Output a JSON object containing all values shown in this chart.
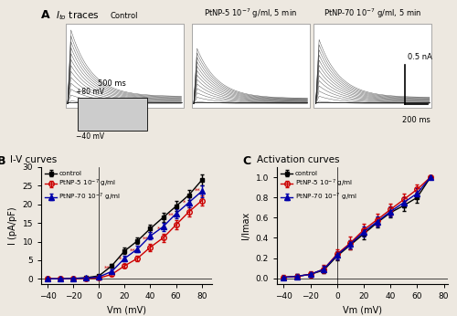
{
  "panel_A_title": "Ito traces",
  "panel_B_title": "I-V curves",
  "panel_C_title": "Activation curves",
  "Vm": [
    -40,
    -30,
    -20,
    -10,
    0,
    10,
    20,
    30,
    40,
    50,
    60,
    70,
    80
  ],
  "IV_control_mean": [
    0.0,
    0.0,
    0.1,
    0.3,
    0.8,
    3.5,
    7.5,
    10.2,
    13.5,
    16.5,
    19.5,
    22.5,
    26.5
  ],
  "IV_control_err": [
    0.1,
    0.1,
    0.1,
    0.2,
    0.3,
    0.5,
    0.8,
    0.9,
    1.0,
    1.2,
    1.3,
    1.4,
    1.5
  ],
  "IV_ptnp5_mean": [
    0.0,
    0.0,
    0.0,
    0.1,
    0.2,
    1.2,
    3.5,
    5.5,
    8.5,
    11.0,
    14.5,
    18.0,
    21.0
  ],
  "IV_ptnp5_err": [
    0.1,
    0.1,
    0.1,
    0.2,
    0.2,
    0.4,
    0.6,
    0.8,
    1.0,
    1.1,
    1.2,
    1.3,
    1.4
  ],
  "IV_ptnp70_mean": [
    0.0,
    0.0,
    0.1,
    0.2,
    0.5,
    2.0,
    5.5,
    8.0,
    11.5,
    14.0,
    17.5,
    20.5,
    23.5
  ],
  "IV_ptnp70_err": [
    0.1,
    0.1,
    0.1,
    0.2,
    0.3,
    0.5,
    0.7,
    0.9,
    1.0,
    1.1,
    1.2,
    1.4,
    1.5
  ],
  "Vm_act": [
    -40,
    -30,
    -20,
    -10,
    0,
    10,
    20,
    30,
    40,
    50,
    60,
    70
  ],
  "Act_control_mean": [
    0.01,
    0.02,
    0.04,
    0.08,
    0.22,
    0.33,
    0.44,
    0.55,
    0.65,
    0.72,
    0.8,
    1.0
  ],
  "Act_control_err": [
    0.01,
    0.02,
    0.02,
    0.03,
    0.04,
    0.04,
    0.05,
    0.05,
    0.05,
    0.05,
    0.05,
    0.0
  ],
  "Act_ptnp5_mean": [
    0.01,
    0.02,
    0.04,
    0.09,
    0.24,
    0.35,
    0.48,
    0.58,
    0.68,
    0.78,
    0.88,
    1.0
  ],
  "Act_ptnp5_err": [
    0.02,
    0.02,
    0.03,
    0.04,
    0.05,
    0.06,
    0.06,
    0.06,
    0.06,
    0.06,
    0.05,
    0.0
  ],
  "Act_ptnp70_mean": [
    0.01,
    0.02,
    0.04,
    0.09,
    0.23,
    0.34,
    0.46,
    0.56,
    0.66,
    0.75,
    0.84,
    1.0
  ],
  "Act_ptnp70_err": [
    0.01,
    0.02,
    0.02,
    0.03,
    0.04,
    0.04,
    0.05,
    0.05,
    0.05,
    0.05,
    0.05,
    0.0
  ],
  "sig_IV_positions": [
    10,
    20,
    30,
    40,
    50,
    60,
    70,
    80
  ],
  "sig_IV_labels": [
    "**",
    "*",
    "**",
    "**",
    "*",
    "**",
    "*",
    "**"
  ],
  "color_control": "#000000",
  "color_ptnp5": "#cc0000",
  "color_ptnp70": "#0000aa",
  "bg_color": "#ede8e0",
  "IV_ylabel": "I (pA/pF)",
  "IV_xlabel": "Vm (mV)",
  "Act_ylabel": "I/Imax",
  "Act_xlabel": "Vm (mV)"
}
